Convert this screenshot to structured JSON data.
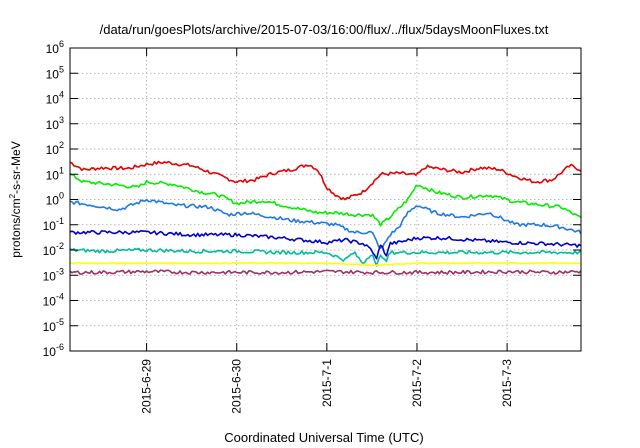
{
  "chart_data": {
    "type": "line",
    "title": "/data/run/goesPlots/archive/2015-07-03/16:00/flux/../flux/5daysMoonFluxes.txt",
    "xlabel": "Coordinated Universal Time (UTC)",
    "ylabel": {
      "base": "protons/cm",
      "sup": "2",
      "rest": "-s-sr-MeV"
    },
    "x_unit": "days after 2015-06-28 00:00 UTC",
    "xlim": [
      0.15,
      5.82
    ],
    "ylim": [
      1e-06,
      1000000.0
    ],
    "yscale": "log",
    "x_ticks": [
      {
        "pos": 1,
        "label": "2015-6-29"
      },
      {
        "pos": 2,
        "label": "2015-6-30"
      },
      {
        "pos": 3,
        "label": "2015-7-1"
      },
      {
        "pos": 4,
        "label": "2015-7-2"
      },
      {
        "pos": 5,
        "label": "2015-7-3"
      }
    ],
    "y_ticks": [
      {
        "exp": -6,
        "label": "10",
        "sup": "-6"
      },
      {
        "exp": -5,
        "label": "10",
        "sup": "-5"
      },
      {
        "exp": -4,
        "label": "10",
        "sup": "-4"
      },
      {
        "exp": -3,
        "label": "10",
        "sup": "-3"
      },
      {
        "exp": -2,
        "label": "10",
        "sup": "-2"
      },
      {
        "exp": -1,
        "label": "10",
        "sup": "-1"
      },
      {
        "exp": 0,
        "label": "10",
        "sup": "0"
      },
      {
        "exp": 1,
        "label": "10",
        "sup": "1"
      },
      {
        "exp": 2,
        "label": "10",
        "sup": "2"
      },
      {
        "exp": 3,
        "label": "10",
        "sup": "3"
      },
      {
        "exp": 4,
        "label": "10",
        "sup": "4"
      },
      {
        "exp": 5,
        "label": "10",
        "sup": "5"
      },
      {
        "exp": 6,
        "label": "10",
        "sup": "6"
      }
    ],
    "grid": true,
    "legend": "none",
    "series": [
      {
        "color": "#e60000",
        "x": [
          0.15,
          0.3,
          0.5,
          0.8,
          1.0,
          1.2,
          1.5,
          1.8,
          2.0,
          2.2,
          2.4,
          2.6,
          2.8,
          2.9,
          3.0,
          3.1,
          3.2,
          3.4,
          3.6,
          3.8,
          4.0,
          4.1,
          4.3,
          4.5,
          4.7,
          4.9,
          5.1,
          5.3,
          5.5,
          5.7,
          5.82
        ],
        "y": [
          30,
          15,
          18,
          17,
          25,
          30,
          22,
          9,
          5,
          6,
          11,
          15,
          25,
          15,
          3,
          1.5,
          1,
          2,
          10,
          11,
          9,
          20,
          15,
          12,
          18,
          16,
          8,
          5,
          6,
          22,
          15
        ]
      },
      {
        "color": "#00ee00",
        "x": [
          0.15,
          0.3,
          0.6,
          0.9,
          1.0,
          1.3,
          1.6,
          1.8,
          2.0,
          2.3,
          2.6,
          2.9,
          3.1,
          3.3,
          3.5,
          3.6,
          3.7,
          3.9,
          4.0,
          4.2,
          4.5,
          4.8,
          5.1,
          5.4,
          5.6,
          5.82
        ],
        "y": [
          10,
          5,
          4,
          3,
          5,
          4,
          2,
          1.5,
          0.7,
          0.9,
          0.5,
          0.3,
          0.3,
          0.25,
          0.25,
          0.1,
          0.2,
          1,
          4,
          2,
          1.2,
          1.5,
          0.8,
          0.6,
          0.5,
          0.18
        ]
      },
      {
        "color": "#1e7ae0",
        "x": [
          0.15,
          0.4,
          0.7,
          1.0,
          1.3,
          1.7,
          1.9,
          2.1,
          2.4,
          2.6,
          2.9,
          3.1,
          3.3,
          3.5,
          3.6,
          3.7,
          3.8,
          3.9,
          4.0,
          4.2,
          4.5,
          4.8,
          5.1,
          5.4,
          5.6,
          5.82
        ],
        "y": [
          0.8,
          0.6,
          0.4,
          1,
          0.6,
          0.5,
          0.25,
          0.3,
          0.2,
          0.15,
          0.12,
          0.1,
          0.05,
          0.05,
          0.01,
          0.04,
          0.08,
          0.3,
          0.6,
          0.3,
          0.2,
          0.3,
          0.1,
          0.1,
          0.08,
          0.05
        ]
      },
      {
        "color": "#0000cc",
        "x": [
          0.15,
          0.5,
          1.0,
          1.5,
          2.0,
          2.5,
          3.0,
          3.2,
          3.4,
          3.5,
          3.55,
          3.6,
          3.65,
          3.7,
          3.8,
          4.0,
          4.3,
          4.6,
          5.0,
          5.4,
          5.82
        ],
        "y": [
          0.05,
          0.05,
          0.05,
          0.04,
          0.04,
          0.03,
          0.02,
          0.025,
          0.018,
          0.01,
          0.004,
          0.02,
          0.005,
          0.018,
          0.02,
          0.03,
          0.03,
          0.025,
          0.02,
          0.018,
          0.015
        ]
      },
      {
        "color": "#00bb99",
        "x": [
          0.15,
          0.5,
          1.0,
          1.5,
          2.0,
          2.5,
          3.0,
          3.2,
          3.3,
          3.4,
          3.5,
          3.55,
          3.6,
          3.65,
          3.7,
          3.8,
          4.0,
          4.5,
          5.0,
          5.5,
          5.82
        ],
        "y": [
          0.01,
          0.009,
          0.01,
          0.009,
          0.009,
          0.008,
          0.008,
          0.004,
          0.008,
          0.003,
          0.008,
          0.002,
          0.008,
          0.003,
          0.008,
          0.008,
          0.008,
          0.008,
          0.008,
          0.008,
          0.008
        ]
      },
      {
        "color": "#ffff00",
        "x": [
          0.15,
          1.0,
          2.0,
          3.0,
          3.5,
          4.0,
          5.0,
          5.82
        ],
        "y": [
          0.003,
          0.003,
          0.003,
          0.003,
          0.0025,
          0.003,
          0.003,
          0.003
        ]
      },
      {
        "color": "#993366",
        "x": [
          0.15,
          0.5,
          1.0,
          1.5,
          2.0,
          2.5,
          3.0,
          3.5,
          4.0,
          4.5,
          5.0,
          5.5,
          5.82
        ],
        "y": [
          0.0013,
          0.0013,
          0.0014,
          0.0013,
          0.0013,
          0.0013,
          0.0014,
          0.0013,
          0.0013,
          0.0013,
          0.0014,
          0.0013,
          0.0014
        ]
      }
    ]
  }
}
